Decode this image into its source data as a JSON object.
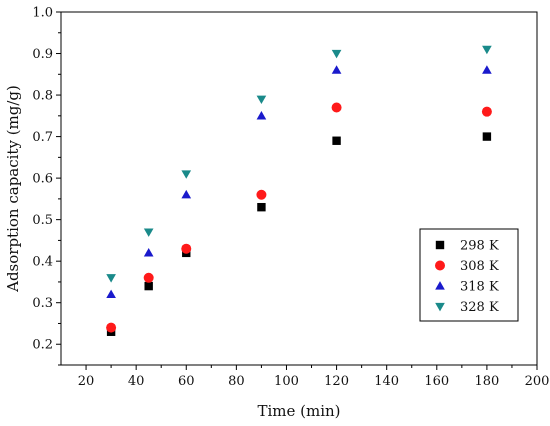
{
  "chart_data": {
    "type": "scatter",
    "title": "",
    "xlabel": "Time (min)",
    "ylabel": "Adsorption capacity (mg/g)",
    "xlim": [
      10,
      200
    ],
    "ylim": [
      0.15,
      1.0
    ],
    "x_ticks": [
      20,
      40,
      60,
      80,
      100,
      120,
      140,
      160,
      180,
      200
    ],
    "y_ticks": [
      0.2,
      0.3,
      0.4,
      0.5,
      0.6,
      0.7,
      0.8,
      0.9,
      1.0
    ],
    "grid": false,
    "legend_position": "bottom-right",
    "x": [
      30,
      45,
      60,
      90,
      120,
      180
    ],
    "series": [
      {
        "name": "298 K",
        "marker": "square",
        "color": "#000000",
        "values": [
          0.23,
          0.34,
          0.42,
          0.53,
          0.69,
          0.7
        ]
      },
      {
        "name": "308 K",
        "marker": "circle",
        "color": "#ff1a1a",
        "values": [
          0.24,
          0.36,
          0.43,
          0.56,
          0.77,
          0.76
        ]
      },
      {
        "name": "318 K",
        "marker": "triangle-up",
        "color": "#1a1acc",
        "values": [
          0.32,
          0.42,
          0.56,
          0.75,
          0.86,
          0.86
        ]
      },
      {
        "name": "328 K",
        "marker": "triangle-down",
        "color": "#1a8a8a",
        "values": [
          0.36,
          0.47,
          0.61,
          0.79,
          0.9,
          0.91
        ]
      }
    ]
  }
}
